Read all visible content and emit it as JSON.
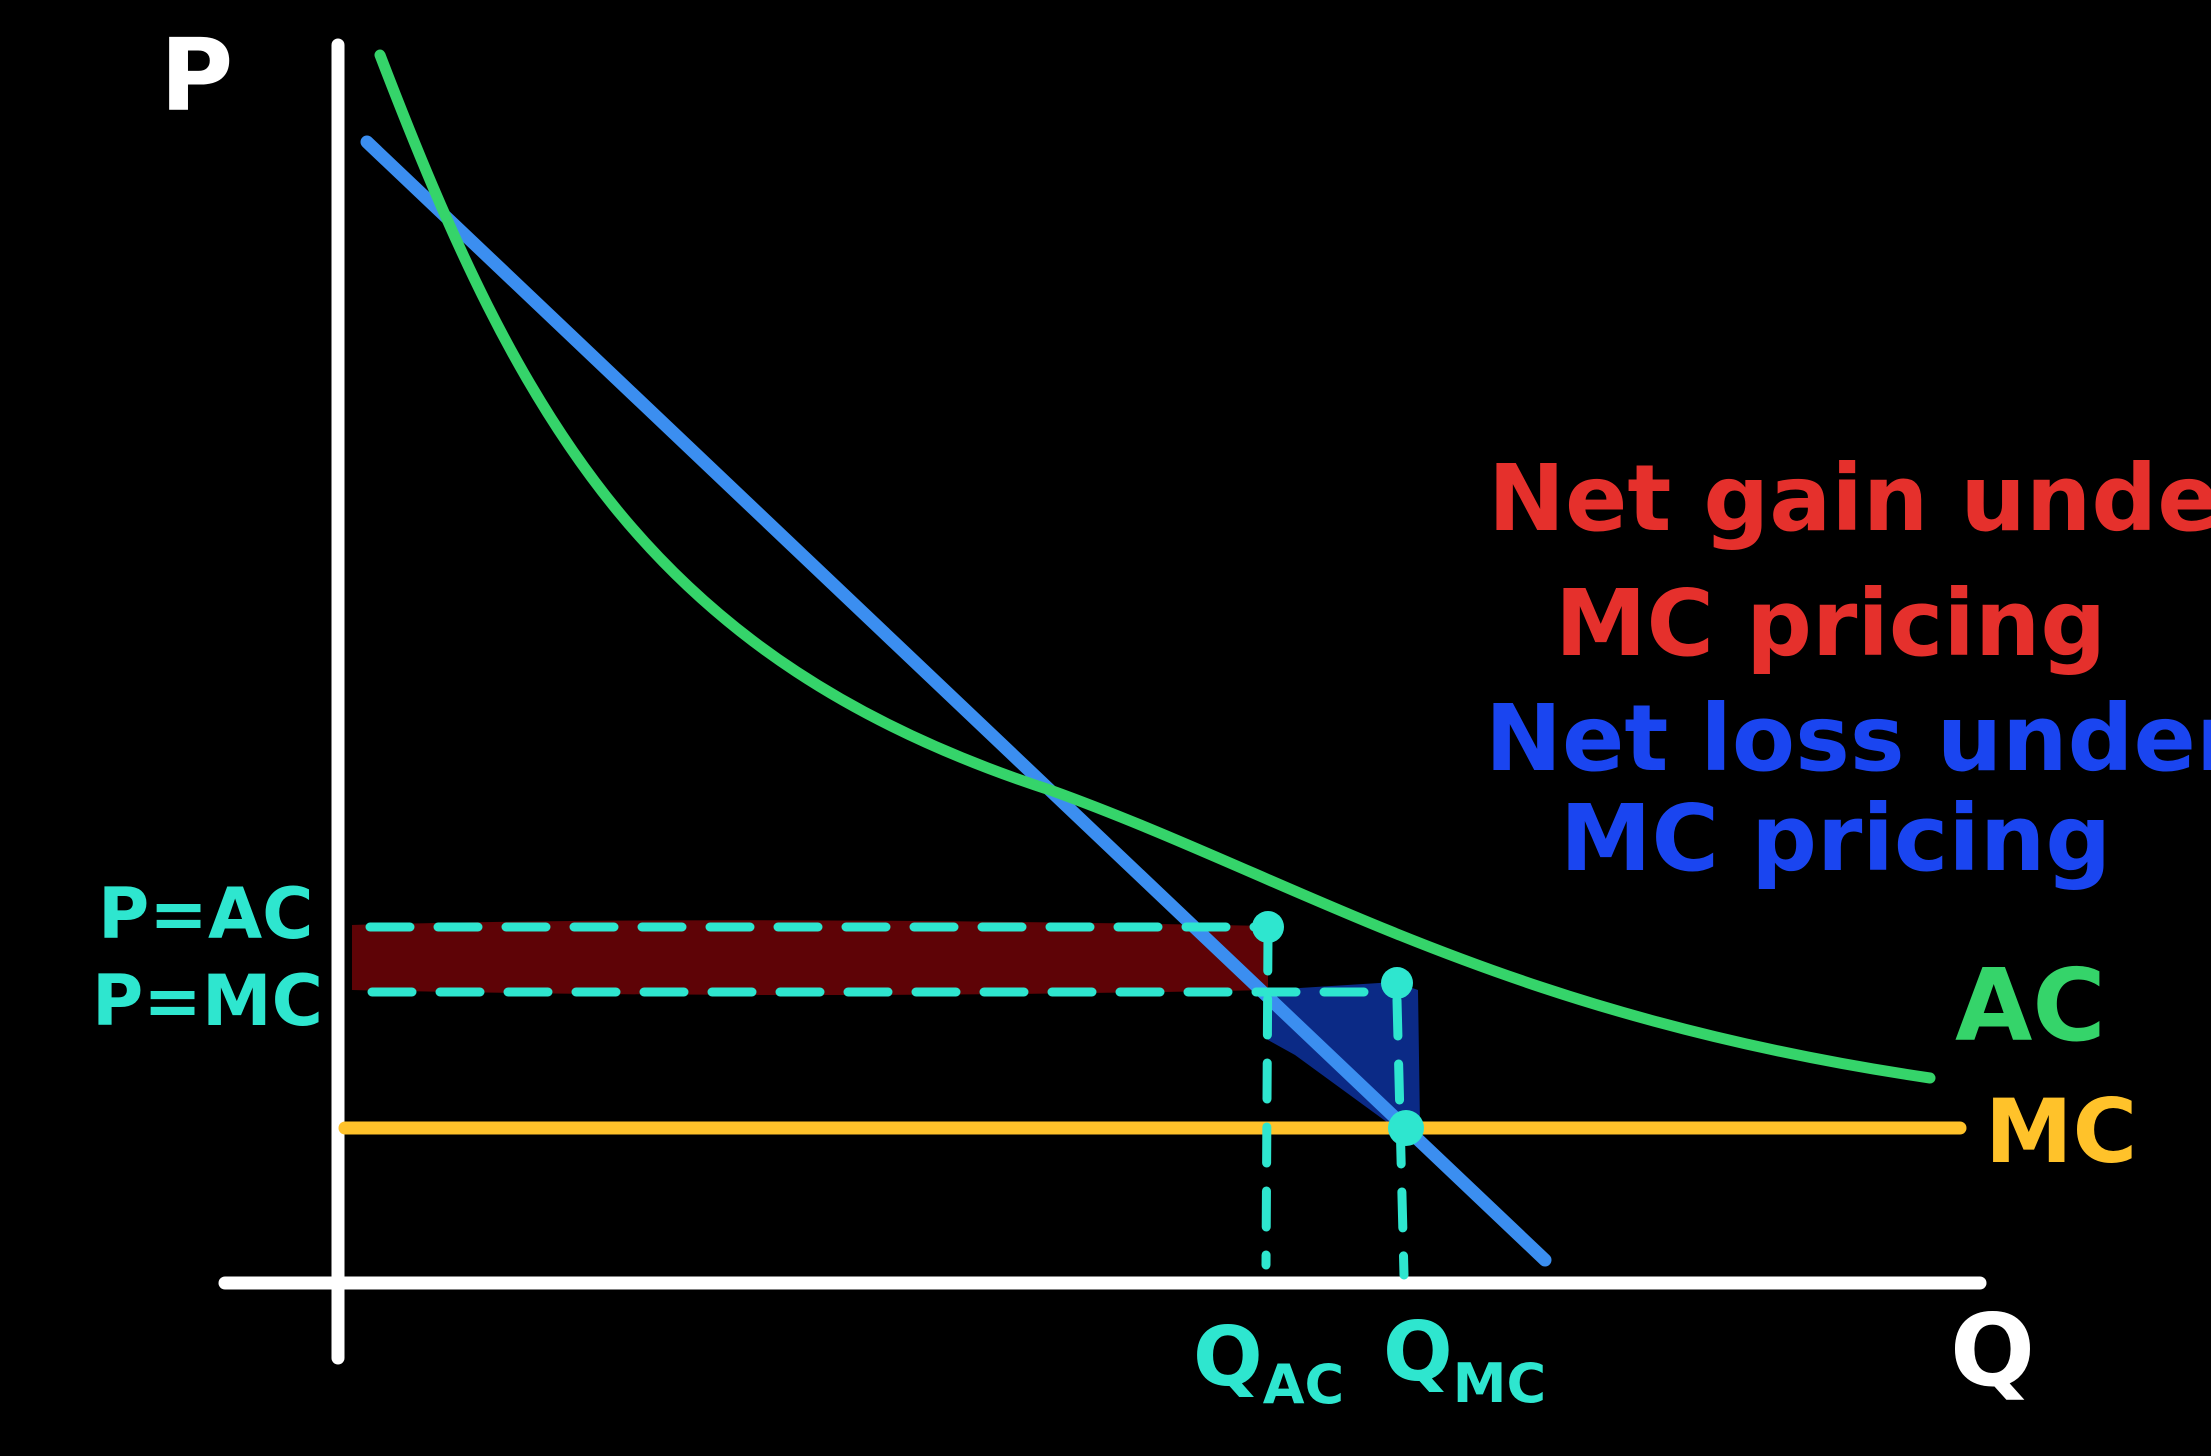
{
  "colors": {
    "background": "#000000",
    "axes": "#ffffff",
    "demand": "#3b8ef0",
    "ac": "#35d46a",
    "mc": "#ffc22a",
    "guides": "#2ee6cf",
    "gain_fill": "#5e0306",
    "loss_fill": "#0b2a86",
    "gain_text": "#e5302c",
    "loss_text": "#1a45f0"
  },
  "axes": {
    "y_label": "P",
    "x_label": "Q"
  },
  "price_labels": {
    "p_ac": "P=AC",
    "p_mc": "P=MC"
  },
  "quantity_labels": {
    "q_ac_main": "Q",
    "q_ac_sub": "AC",
    "q_mc_main": "Q",
    "q_mc_sub": "MC"
  },
  "curve_labels": {
    "ac": "AC",
    "mc": "MC"
  },
  "legend": {
    "gain_line1": "Net gain under",
    "gain_line2": "MC pricing",
    "loss_line1": "Net loss under",
    "loss_line2": "MC pricing"
  }
}
